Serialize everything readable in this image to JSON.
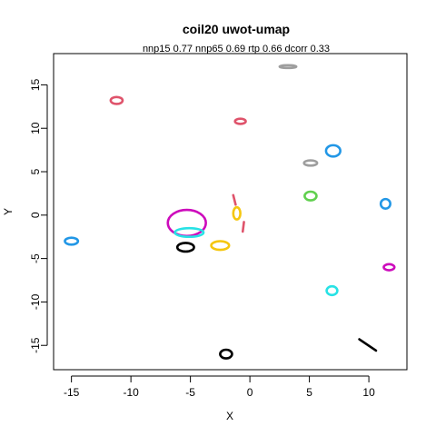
{
  "chart_data": {
    "type": "scatter",
    "title": "coil20 uwot-umap",
    "subtitle": "nnp15 0.77 nnp65 0.69 rtp 0.66 dcorr 0.33",
    "xlabel": "X",
    "ylabel": "Y",
    "xlim": [
      -16.5,
      13.2
    ],
    "ylim": [
      -17.8,
      18.6
    ],
    "xticks": [
      -15,
      -10,
      -5,
      0,
      5,
      10
    ],
    "yticks": [
      -15,
      -10,
      -5,
      0,
      5,
      10,
      15
    ],
    "grid": false,
    "legend": "none",
    "clusters": [
      {
        "shape": "ellipse",
        "cx": -11.2,
        "cy": 13.2,
        "rx": 0.5,
        "ry": 0.4,
        "color": "#DF536B"
      },
      {
        "shape": "ellipse",
        "cx": 3.2,
        "cy": 17.1,
        "rx": 0.7,
        "ry": 0.15,
        "color": "#9E9E9E"
      },
      {
        "shape": "ellipse",
        "cx": -0.8,
        "cy": 10.8,
        "rx": 0.45,
        "ry": 0.3,
        "color": "#DF536B"
      },
      {
        "shape": "ellipse",
        "cx": 7.0,
        "cy": 7.4,
        "rx": 0.6,
        "ry": 0.65,
        "color": "#2297E6"
      },
      {
        "shape": "ellipse",
        "cx": 5.1,
        "cy": 6.0,
        "rx": 0.55,
        "ry": 0.3,
        "color": "#9E9E9E"
      },
      {
        "shape": "ellipse",
        "cx": 5.1,
        "cy": 2.2,
        "rx": 0.5,
        "ry": 0.5,
        "color": "#61D04F"
      },
      {
        "shape": "ellipse",
        "cx": 11.4,
        "cy": 1.3,
        "rx": 0.4,
        "ry": 0.55,
        "color": "#2297E6"
      },
      {
        "shape": "ellipse",
        "cx": -5.3,
        "cy": -0.9,
        "rx": 1.6,
        "ry": 1.5,
        "color": "#CD0BBC"
      },
      {
        "shape": "ellipse",
        "cx": -5.1,
        "cy": -2.0,
        "rx": 1.2,
        "ry": 0.5,
        "color": "#28E2E5"
      },
      {
        "shape": "ellipse",
        "cx": -5.4,
        "cy": -3.7,
        "rx": 0.7,
        "ry": 0.5,
        "color": "#000000"
      },
      {
        "shape": "ellipse",
        "cx": -2.5,
        "cy": -3.5,
        "rx": 0.75,
        "ry": 0.5,
        "color": "#F5C710"
      },
      {
        "shape": "ellipse",
        "cx": -1.1,
        "cy": 0.2,
        "rx": 0.3,
        "ry": 0.7,
        "color": "#F5C710"
      },
      {
        "shape": "ellipse",
        "cx": -15.0,
        "cy": -3.0,
        "rx": 0.55,
        "ry": 0.4,
        "color": "#2297E6"
      },
      {
        "shape": "ellipse",
        "cx": 11.7,
        "cy": -6.0,
        "rx": 0.45,
        "ry": 0.35,
        "color": "#CD0BBC"
      },
      {
        "shape": "ellipse",
        "cx": 6.9,
        "cy": -8.7,
        "rx": 0.45,
        "ry": 0.5,
        "color": "#28E2E5"
      },
      {
        "shape": "ellipse",
        "cx": -2.0,
        "cy": -16.0,
        "rx": 0.5,
        "ry": 0.5,
        "color": "#000000"
      },
      {
        "shape": "line",
        "points": [
          [
            -1.4,
            2.3
          ],
          [
            -1.2,
            1.2
          ]
        ],
        "color": "#DF536B"
      },
      {
        "shape": "line",
        "points": [
          [
            -0.5,
            -0.8
          ],
          [
            -0.6,
            -1.9
          ]
        ],
        "color": "#DF536B"
      },
      {
        "shape": "line",
        "points": [
          [
            9.2,
            -14.3
          ],
          [
            10.6,
            -15.6
          ]
        ],
        "color": "#000000"
      }
    ]
  }
}
